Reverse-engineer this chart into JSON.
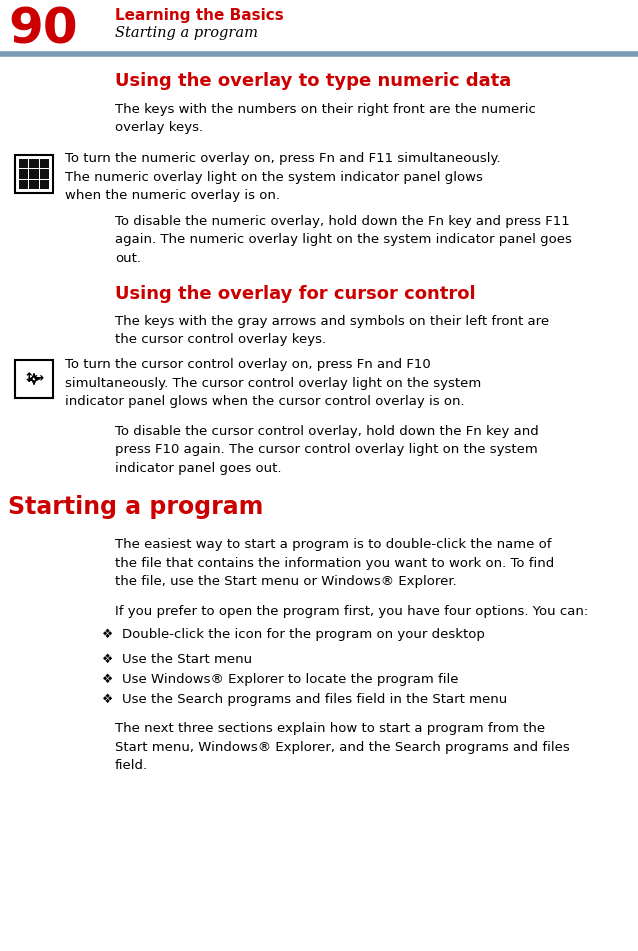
{
  "page_num": "90",
  "chapter_title": "Learning the Basics",
  "section_subtitle": "Starting a program",
  "header_line_color": "#7a9ab5",
  "red_color": "#cc0000",
  "black_color": "#000000",
  "bg_color": "#ffffff",
  "section1_title": "Using the overlay to type numeric data",
  "section1_body": "The keys with the numbers on their right front are the numeric\noverlay keys.",
  "section1_note1": "To turn the numeric overlay on, press Fn and F11 simultaneously.\nThe numeric overlay light on the system indicator panel glows\nwhen the numeric overlay is on.",
  "section1_note2": "To disable the numeric overlay, hold down the Fn key and press F11\nagain. The numeric overlay light on the system indicator panel goes\nout.",
  "section2_title": "Using the overlay for cursor control",
  "section2_body": "The keys with the gray arrows and symbols on their left front are\nthe cursor control overlay keys.",
  "section2_note1": "To turn the cursor control overlay on, press Fn and F10\nsimultaneously. The cursor control overlay light on the system\nindicator panel glows when the cursor control overlay is on.",
  "section2_note2": "To disable the cursor control overlay, hold down the Fn key and\npress F10 again. The cursor control overlay light on the system\nindicator panel goes out.",
  "section3_title": "Starting a program",
  "section3_body1": "The easiest way to start a program is to double-click the name of\nthe file that contains the information you want to work on. To find\nthe file, use the Start menu or Windows® Explorer.",
  "section3_body2": "If you prefer to open the program first, you have four options. You can:",
  "section3_bullets": [
    "Double-click the icon for the program on your desktop",
    "Use the Start menu",
    "Use Windows® Explorer to locate the program file",
    "Use the Search programs and files field in the Start menu"
  ],
  "section3_body3": "The next three sections explain how to start a program from the\nStart menu, Windows® Explorer, and the Search programs and files\nfield."
}
